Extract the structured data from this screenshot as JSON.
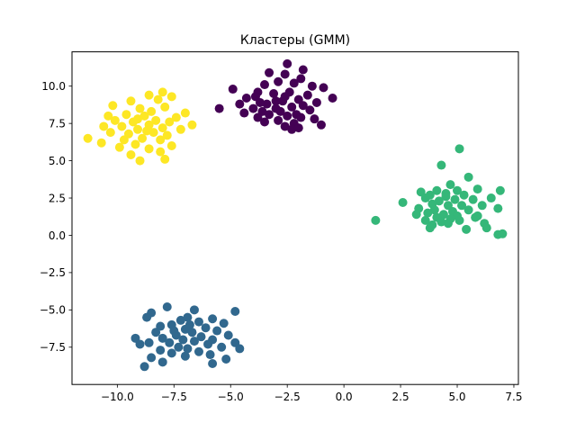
{
  "chart_data": {
    "type": "scatter",
    "title": "Кластеры (GMM)",
    "xlabel": "",
    "ylabel": "",
    "xlim": [
      -12.0,
      7.7
    ],
    "ylim": [
      -10.0,
      12.3
    ],
    "grid": false,
    "x_ticks": [
      -10.0,
      -7.5,
      -5.0,
      -2.5,
      0.0,
      2.5,
      5.0,
      7.5
    ],
    "x_tick_labels": [
      "−10.0",
      "−7.5",
      "−5.0",
      "−2.5",
      "0.0",
      "2.5",
      "5.0",
      "7.5"
    ],
    "y_ticks": [
      -7.5,
      -5.0,
      -2.5,
      0.0,
      2.5,
      5.0,
      7.5,
      10.0
    ],
    "y_tick_labels": [
      "−7.5",
      "−5.0",
      "−2.5",
      "0.0",
      "2.5",
      "5.0",
      "7.5",
      "10.0"
    ],
    "series": [
      {
        "color": "#440154",
        "points": [
          [
            -2.5,
            11.5
          ],
          [
            -1.8,
            11.1
          ],
          [
            -3.3,
            10.9
          ],
          [
            -2.6,
            10.8
          ],
          [
            -1.9,
            10.5
          ],
          [
            -2.9,
            10.3
          ],
          [
            -3.5,
            10.1
          ],
          [
            -2.2,
            10.2
          ],
          [
            -1.4,
            10.0
          ],
          [
            -0.9,
            9.9
          ],
          [
            -4.9,
            9.8
          ],
          [
            -3.8,
            9.6
          ],
          [
            -3.1,
            9.5
          ],
          [
            -2.4,
            9.6
          ],
          [
            -1.6,
            9.4
          ],
          [
            -0.5,
            9.2
          ],
          [
            -3.9,
            9.3
          ],
          [
            -4.3,
            9.2
          ],
          [
            -2.0,
            9.1
          ],
          [
            -2.7,
            9.0
          ],
          [
            -1.2,
            8.9
          ],
          [
            -3.4,
            8.8
          ],
          [
            -4.6,
            8.8
          ],
          [
            -1.8,
            8.7
          ],
          [
            -2.3,
            8.6
          ],
          [
            -3.0,
            8.5
          ],
          [
            -4.0,
            8.5
          ],
          [
            -3.6,
            8.3
          ],
          [
            -2.8,
            8.3
          ],
          [
            -1.5,
            8.4
          ],
          [
            -4.4,
            8.2
          ],
          [
            -2.1,
            8.1
          ],
          [
            -3.3,
            8.1
          ],
          [
            -2.5,
            8.0
          ],
          [
            -3.8,
            7.9
          ],
          [
            -1.9,
            7.9
          ],
          [
            -1.3,
            7.8
          ],
          [
            -2.9,
            7.7
          ],
          [
            -3.5,
            7.6
          ],
          [
            -2.2,
            7.5
          ],
          [
            -2.6,
            7.3
          ],
          [
            -1.0,
            7.4
          ],
          [
            -2.3,
            7.1
          ],
          [
            -2.0,
            7.2
          ],
          [
            -5.5,
            8.5
          ],
          [
            -3.0,
            9.0
          ],
          [
            -2.6,
            9.3
          ],
          [
            -3.7,
            8.9
          ]
        ]
      },
      {
        "color": "#31688e",
        "points": [
          [
            -6.6,
            -5.0
          ],
          [
            -4.8,
            -5.1
          ],
          [
            -7.8,
            -4.8
          ],
          [
            -8.5,
            -5.2
          ],
          [
            -6.9,
            -5.5
          ],
          [
            -5.8,
            -5.6
          ],
          [
            -7.2,
            -5.7
          ],
          [
            -8.7,
            -5.5
          ],
          [
            -6.4,
            -5.8
          ],
          [
            -5.3,
            -5.9
          ],
          [
            -7.6,
            -6.0
          ],
          [
            -8.1,
            -6.1
          ],
          [
            -6.1,
            -6.2
          ],
          [
            -7.0,
            -6.3
          ],
          [
            -5.6,
            -6.4
          ],
          [
            -8.3,
            -6.5
          ],
          [
            -6.7,
            -6.5
          ],
          [
            -7.4,
            -6.7
          ],
          [
            -5.1,
            -6.7
          ],
          [
            -6.3,
            -6.8
          ],
          [
            -8.0,
            -6.9
          ],
          [
            -9.2,
            -6.9
          ],
          [
            -7.1,
            -7.0
          ],
          [
            -5.8,
            -7.0
          ],
          [
            -6.6,
            -7.1
          ],
          [
            -8.6,
            -7.2
          ],
          [
            -7.7,
            -7.2
          ],
          [
            -4.8,
            -7.2
          ],
          [
            -6.0,
            -7.3
          ],
          [
            -9.0,
            -7.3
          ],
          [
            -7.3,
            -7.5
          ],
          [
            -5.4,
            -7.5
          ],
          [
            -6.9,
            -7.6
          ],
          [
            -8.1,
            -7.7
          ],
          [
            -4.6,
            -7.6
          ],
          [
            -6.4,
            -7.8
          ],
          [
            -7.6,
            -7.9
          ],
          [
            -5.9,
            -8.0
          ],
          [
            -8.5,
            -8.2
          ],
          [
            -7.0,
            -8.1
          ],
          [
            -5.2,
            -8.3
          ],
          [
            -8.0,
            -8.5
          ],
          [
            -5.8,
            -8.6
          ],
          [
            -8.8,
            -8.8
          ],
          [
            -6.8,
            -6.0
          ],
          [
            -7.5,
            -6.4
          ]
        ]
      },
      {
        "color": "#35b779",
        "points": [
          [
            5.1,
            5.8
          ],
          [
            4.3,
            4.7
          ],
          [
            5.5,
            3.9
          ],
          [
            4.7,
            3.4
          ],
          [
            6.9,
            3.0
          ],
          [
            5.9,
            3.1
          ],
          [
            3.4,
            2.9
          ],
          [
            4.1,
            3.0
          ],
          [
            5.0,
            3.0
          ],
          [
            3.8,
            2.7
          ],
          [
            4.5,
            2.8
          ],
          [
            5.3,
            2.7
          ],
          [
            6.5,
            2.5
          ],
          [
            3.6,
            2.5
          ],
          [
            4.9,
            2.4
          ],
          [
            4.2,
            2.3
          ],
          [
            5.7,
            2.4
          ],
          [
            2.6,
            2.2
          ],
          [
            3.9,
            2.1
          ],
          [
            4.6,
            2.0
          ],
          [
            5.2,
            2.0
          ],
          [
            6.1,
            2.0
          ],
          [
            3.3,
            1.8
          ],
          [
            4.0,
            1.7
          ],
          [
            4.8,
            1.6
          ],
          [
            5.5,
            1.7
          ],
          [
            6.8,
            1.8
          ],
          [
            3.7,
            1.5
          ],
          [
            4.4,
            1.4
          ],
          [
            5.0,
            1.3
          ],
          [
            3.2,
            1.4
          ],
          [
            4.1,
            1.2
          ],
          [
            4.7,
            1.1
          ],
          [
            5.8,
            1.2
          ],
          [
            1.4,
            1.0
          ],
          [
            3.6,
            1.0
          ],
          [
            4.3,
            0.9
          ],
          [
            5.1,
            1.0
          ],
          [
            6.2,
            0.8
          ],
          [
            3.9,
            0.7
          ],
          [
            4.6,
            0.8
          ],
          [
            3.8,
            0.5
          ],
          [
            5.4,
            0.4
          ],
          [
            6.3,
            0.5
          ],
          [
            6.8,
            0.05
          ],
          [
            7.0,
            0.1
          ],
          [
            5.9,
            1.3
          ],
          [
            4.5,
            2.6
          ]
        ]
      },
      {
        "color": "#fde725",
        "points": [
          [
            -8.0,
            9.6
          ],
          [
            -7.6,
            9.3
          ],
          [
            -8.6,
            9.4
          ],
          [
            -9.4,
            9.0
          ],
          [
            -8.2,
            9.1
          ],
          [
            -10.2,
            8.7
          ],
          [
            -9.0,
            8.5
          ],
          [
            -7.9,
            8.6
          ],
          [
            -8.5,
            8.3
          ],
          [
            -10.4,
            8.0
          ],
          [
            -7.0,
            8.2
          ],
          [
            -9.6,
            8.1
          ],
          [
            -8.8,
            8.0
          ],
          [
            -7.4,
            7.9
          ],
          [
            -10.1,
            7.7
          ],
          [
            -8.3,
            7.7
          ],
          [
            -9.3,
            7.6
          ],
          [
            -7.7,
            7.6
          ],
          [
            -6.7,
            7.4
          ],
          [
            -10.6,
            7.3
          ],
          [
            -8.6,
            7.4
          ],
          [
            -9.8,
            7.3
          ],
          [
            -8.0,
            7.2
          ],
          [
            -9.1,
            7.1
          ],
          [
            -7.2,
            7.1
          ],
          [
            -10.3,
            6.9
          ],
          [
            -8.4,
            6.9
          ],
          [
            -9.5,
            6.8
          ],
          [
            -7.8,
            6.7
          ],
          [
            -11.3,
            6.5
          ],
          [
            -8.9,
            6.5
          ],
          [
            -9.7,
            6.4
          ],
          [
            -8.1,
            6.4
          ],
          [
            -10.7,
            6.2
          ],
          [
            -9.2,
            6.1
          ],
          [
            -7.6,
            6.0
          ],
          [
            -9.9,
            5.9
          ],
          [
            -8.6,
            5.8
          ],
          [
            -8.1,
            5.6
          ],
          [
            -9.4,
            5.4
          ],
          [
            -7.9,
            5.1
          ],
          [
            -9.0,
            5.0
          ],
          [
            -8.7,
            7.0
          ],
          [
            -9.1,
            7.8
          ]
        ]
      }
    ]
  }
}
